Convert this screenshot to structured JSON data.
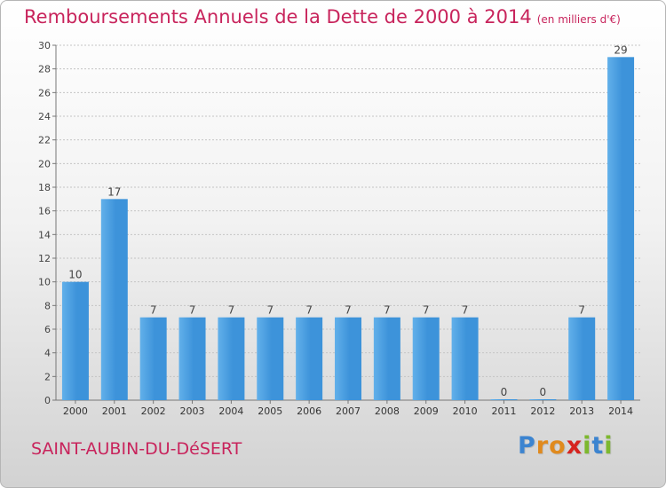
{
  "title": "Remboursements Annuels de la Dette de 2000 à 2014",
  "unit": "(en milliers d'€)",
  "town": "SAINT-AUBIN-DU-DéSERT",
  "logo": {
    "letters": [
      "P",
      "r",
      "o",
      "x",
      "i",
      "t",
      "i"
    ],
    "colors": [
      "#3c84d0",
      "#e08a1e",
      "#e08a1e",
      "#d6231e",
      "#7db82e",
      "#3c84d0",
      "#7db82e"
    ]
  },
  "chart_data": {
    "type": "bar",
    "categories": [
      "2000",
      "2001",
      "2002",
      "2003",
      "2004",
      "2005",
      "2006",
      "2007",
      "2008",
      "2009",
      "2010",
      "2011",
      "2012",
      "2013",
      "2014"
    ],
    "values": [
      10,
      17,
      7,
      7,
      7,
      7,
      7,
      7,
      7,
      7,
      7,
      0,
      0,
      7,
      29
    ],
    "ylim": [
      0,
      30
    ],
    "yticks": [
      0,
      2,
      4,
      6,
      8,
      10,
      12,
      14,
      16,
      18,
      20,
      22,
      24,
      26,
      28,
      30
    ],
    "grid": "horizontal dotted",
    "bar_color": "#3d93da",
    "bar_color_light": "#62b0ea"
  }
}
